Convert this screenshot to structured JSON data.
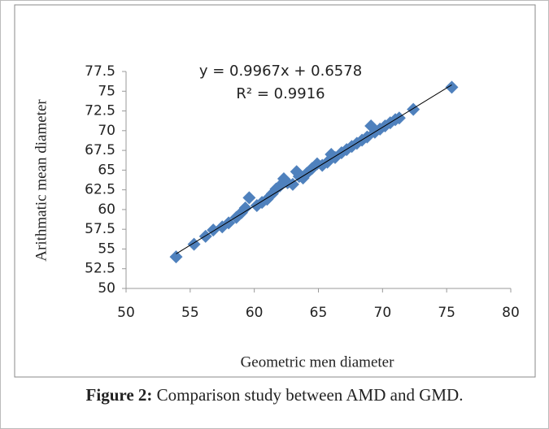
{
  "chart_data": {
    "type": "scatter",
    "xlabel": "Geometric men diameter",
    "ylabel": "Arithmatic mean  diameter",
    "annotations": [
      "y = 0.9967x + 0.6578",
      "R² = 0.9916"
    ],
    "trendline": {
      "slope": 0.9967,
      "intercept": 0.6578
    },
    "color": "#4f81bd",
    "x": [
      53.9,
      55.3,
      56.2,
      56.8,
      57.5,
      58.0,
      58.6,
      59.0,
      59.3,
      59.6,
      60.2,
      60.6,
      61.0,
      61.4,
      61.7,
      62.0,
      62.3,
      62.6,
      63.0,
      63.3,
      63.5,
      63.8,
      64.1,
      64.5,
      64.9,
      65.3,
      65.7,
      66.0,
      66.3,
      66.8,
      67.2,
      67.6,
      68.0,
      68.4,
      68.8,
      69.1,
      69.4,
      69.8,
      70.2,
      70.6,
      71.0,
      71.3,
      72.4,
      75.4
    ],
    "values": [
      54.0,
      55.6,
      56.6,
      57.4,
      57.8,
      58.3,
      59.0,
      59.6,
      60.2,
      61.5,
      60.5,
      60.9,
      61.3,
      62.0,
      62.6,
      63.0,
      63.9,
      63.4,
      63.2,
      64.8,
      64.2,
      64.0,
      64.6,
      65.2,
      65.8,
      65.6,
      66.0,
      67.0,
      66.6,
      67.2,
      67.6,
      68.0,
      68.4,
      68.8,
      69.2,
      70.6,
      69.8,
      70.2,
      70.6,
      71.0,
      71.4,
      71.6,
      72.7,
      75.5
    ],
    "xlim": [
      50,
      80
    ],
    "xticks": [
      50,
      55,
      60,
      65,
      70,
      75,
      80
    ],
    "ylim": [
      50,
      77.5
    ],
    "yticks": [
      50,
      52.5,
      55,
      57.5,
      60,
      62.5,
      65,
      67.5,
      70,
      72.5,
      75,
      77.5
    ],
    "grid": false
  },
  "caption": {
    "label": "Figure 2:",
    "text": "Comparison study between AMD and GMD."
  }
}
